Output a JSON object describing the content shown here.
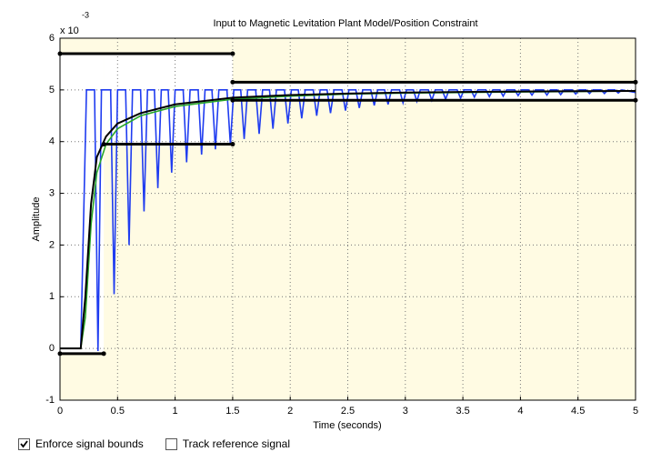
{
  "chart_data": {
    "type": "line",
    "title": "Input to Magnetic Levitation Plant Model/Position Constraint",
    "xlabel": "Time (seconds)",
    "ylabel": "Amplitude",
    "exponent_label": {
      "base": "x 10",
      "power": "-3"
    },
    "xlim": [
      0,
      5
    ],
    "ylim": [
      -1,
      6
    ],
    "xticks": [
      0,
      0.5,
      1,
      1.5,
      2,
      2.5,
      3,
      3.5,
      4,
      4.5,
      5
    ],
    "yticks": [
      -1,
      0,
      1,
      2,
      3,
      4,
      5,
      6
    ],
    "grid": true,
    "upper_bounds": [
      {
        "x": [
          0,
          1.5
        ],
        "value": 5.7
      },
      {
        "x": [
          1.5,
          5
        ],
        "value": 5.15
      }
    ],
    "lower_bounds": [
      {
        "x": [
          0,
          0.38
        ],
        "value": -0.1
      },
      {
        "x": [
          0.38,
          1.5
        ],
        "value": 3.95
      },
      {
        "x": [
          1.5,
          5
        ],
        "value": 4.8
      }
    ],
    "series": [
      {
        "color": "#1f3cf0",
        "x": [
          0,
          0.18,
          0.23,
          0.3,
          0.33,
          0.36,
          0.44,
          0.47,
          0.5,
          0.57,
          0.6,
          0.63,
          0.7,
          0.73,
          0.76,
          0.82,
          0.85,
          0.88,
          0.94,
          0.97,
          1.0,
          1.07,
          1.1,
          1.13,
          1.2,
          1.23,
          1.26,
          1.32,
          1.35,
          1.38,
          1.45,
          1.48,
          1.51,
          1.57,
          1.6,
          1.63,
          1.7,
          1.73,
          1.76,
          1.82,
          1.85,
          1.88,
          1.95,
          1.98,
          2.01,
          2.07,
          2.1,
          2.13,
          2.2,
          2.23,
          2.26,
          2.32,
          2.35,
          2.38,
          2.45,
          2.48,
          2.51,
          2.57,
          2.6,
          2.63,
          2.7,
          2.73,
          2.76,
          2.82,
          2.85,
          2.88,
          2.95,
          2.98,
          3.01,
          3.07,
          3.1,
          3.13,
          3.2,
          3.23,
          3.26,
          3.32,
          3.35,
          3.38,
          3.45,
          3.48,
          3.51,
          3.57,
          3.6,
          3.63,
          3.7,
          3.73,
          3.76,
          3.82,
          3.85,
          3.88,
          3.95,
          3.98,
          4.01,
          4.07,
          4.1,
          4.13,
          4.2,
          4.23,
          4.26,
          4.32,
          4.35,
          4.38,
          4.45,
          4.48,
          4.51,
          4.57,
          4.6,
          4.63,
          4.7,
          4.73,
          4.76,
          4.82,
          4.85,
          4.88,
          5
        ],
        "values": [
          0,
          0,
          5,
          5,
          -0.05,
          5,
          5,
          1.05,
          5,
          5,
          2.0,
          5,
          5,
          2.65,
          5,
          5,
          3.1,
          5,
          5,
          3.4,
          5,
          5,
          3.6,
          5,
          5,
          3.75,
          5,
          5,
          3.85,
          5,
          5,
          3.95,
          5,
          5,
          4.05,
          5,
          5,
          4.15,
          5,
          5,
          4.25,
          5,
          5,
          4.35,
          5,
          5,
          4.45,
          5,
          5,
          4.5,
          5,
          5,
          4.55,
          5,
          5,
          4.6,
          5,
          5,
          4.65,
          5,
          5,
          4.7,
          5,
          5,
          4.72,
          5,
          5,
          4.75,
          5,
          5,
          4.78,
          5,
          5,
          4.8,
          5,
          5,
          4.82,
          5,
          5,
          4.84,
          5,
          5,
          4.86,
          5,
          5,
          4.87,
          5,
          5,
          4.88,
          5,
          5,
          4.89,
          5,
          5,
          4.9,
          5,
          5,
          4.9,
          5,
          5,
          4.91,
          5,
          5,
          4.92,
          5,
          5,
          4.93,
          5,
          5,
          4.93,
          5,
          5,
          4.94,
          5,
          4.95
        ]
      },
      {
        "color": "#2aa82a",
        "x": [
          0,
          0.18,
          0.22,
          0.27,
          0.32,
          0.4,
          0.5,
          0.7,
          1,
          1.5,
          2,
          2.5,
          3,
          4,
          5
        ],
        "values": [
          0,
          0,
          0.6,
          2.4,
          3.4,
          3.95,
          4.25,
          4.5,
          4.68,
          4.82,
          4.88,
          4.92,
          4.94,
          4.96,
          4.98
        ]
      },
      {
        "color": "#000000",
        "x": [
          0,
          0.18,
          0.22,
          0.27,
          0.32,
          0.4,
          0.5,
          0.7,
          1,
          1.5,
          2,
          2.5,
          3,
          4,
          5
        ],
        "values": [
          0,
          0,
          1,
          2.8,
          3.7,
          4.1,
          4.35,
          4.55,
          4.72,
          4.85,
          4.9,
          4.93,
          4.95,
          4.97,
          4.98
        ]
      }
    ]
  },
  "controls": [
    {
      "label": "Enforce signal bounds",
      "checked": true
    },
    {
      "label": "Track reference signal",
      "checked": false
    }
  ]
}
